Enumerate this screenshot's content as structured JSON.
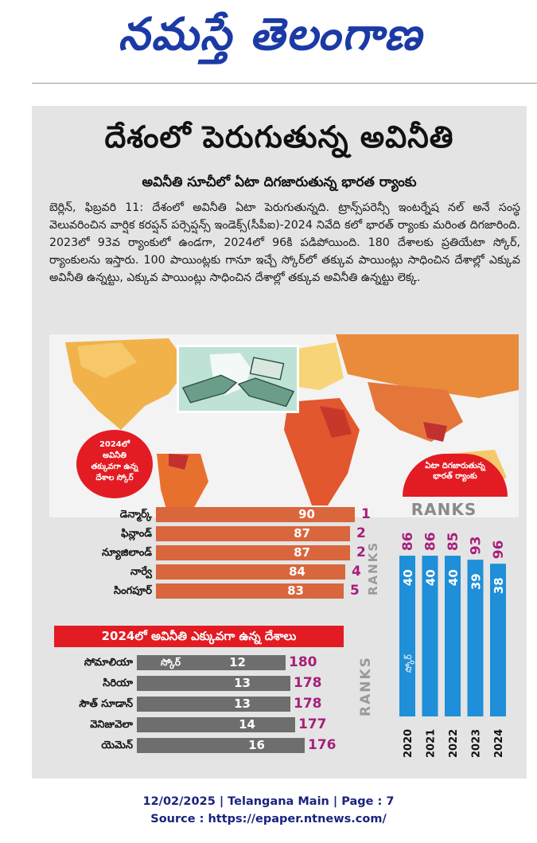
{
  "masthead": {
    "logo_text": "నమస్తే తెలంగాణ"
  },
  "article": {
    "headline": "దేశంలో పెరుగుతున్న అవినీతి",
    "subheadline": "అవినీతి సూచీలో ఏటా దిగజారుతున్న భారత ర్యాంకు",
    "body": "బెర్లిన్, ఫిబ్రవరి 11: దేశంలో అవినీతి ఏటా పెరుగుతున్నది. ట్రాన్స్‌పరెన్సీ ఇంటర్నేష నల్ అనే సంస్థ వెలువరించిన వార్షిక కరప్షన్ పర్సెప్షన్స్ ఇండెక్స్(సీపీఐ)-2024 నివేది కలో భారత్ ర్యాంకు మరింత దిగజారింది. 2023లో 93వ ర్యాంకులో ఉండగా, 2024లో 96కి పడిపోయింది. 180 దేశాలకు ప్రతియేటా స్కోర్, ర్యాంకులను ఇస్తారు. 100 పాయింట్లకు గానూ ఇచ్చే స్కోర్‌లో తక్కువ పాయింట్లు సాధించిన దేశాల్లో ఎక్కువ అవినీతి ఉన్నట్టు, ఎక్కువ పాయింట్లు సాధించిన దేశాల్లో తక్కువ అవినీతి ఉన్నట్టు లెక్క."
  },
  "badges": {
    "low_corruption": [
      "2024లో",
      "అవినీతి",
      "తక్కువగా ఉన్న",
      "దేశాల స్కోర్"
    ],
    "india_rank": [
      "ఏటా దిగజారుతున్న",
      "భారత్ ర్యాంకు"
    ]
  },
  "colors": {
    "orange_bar": "#d9663d",
    "gray_bar": "#6e6e6e",
    "blue_bar": "#1e8fd8",
    "rank_purple": "#a6207a",
    "red": "#e31b23"
  },
  "chart_data": [
    {
      "type": "bar",
      "title": "",
      "side_label": "RANKS",
      "categories": [
        "డెన్మార్క్",
        "ఫిన్లాండ్",
        "న్యూజిలాండ్",
        "నార్వే",
        "సింగపూర్"
      ],
      "values": [
        90,
        87,
        87,
        84,
        83
      ],
      "ranks": [
        1,
        2,
        2,
        4,
        5
      ],
      "color": "#d9663d"
    },
    {
      "type": "bar",
      "title": "2024లో అవినీతి ఎక్కువగా ఉన్న దేశాలు",
      "side_label": "RANKS",
      "score_label": "స్కోర్",
      "categories": [
        "సోమాలియా",
        "సిరియా",
        "సౌత్ సూడాన్",
        "వెనిజువెలా",
        "యెమెన్"
      ],
      "values": [
        12,
        13,
        13,
        14,
        16
      ],
      "ranks": [
        180,
        178,
        178,
        177,
        176
      ],
      "color": "#6e6e6e"
    },
    {
      "type": "bar",
      "title": "RANKS",
      "score_label": "స్కోర్",
      "categories": [
        "2020",
        "2021",
        "2022",
        "2023",
        "2024"
      ],
      "values": [
        40,
        40,
        40,
        39,
        38
      ],
      "ranks": [
        86,
        86,
        85,
        93,
        96
      ],
      "color": "#1e8fd8"
    }
  ],
  "footer": {
    "line1": "12/02/2025 | Telangana Main | Page : 7",
    "line2": "Source : https://epaper.ntnews.com/"
  }
}
